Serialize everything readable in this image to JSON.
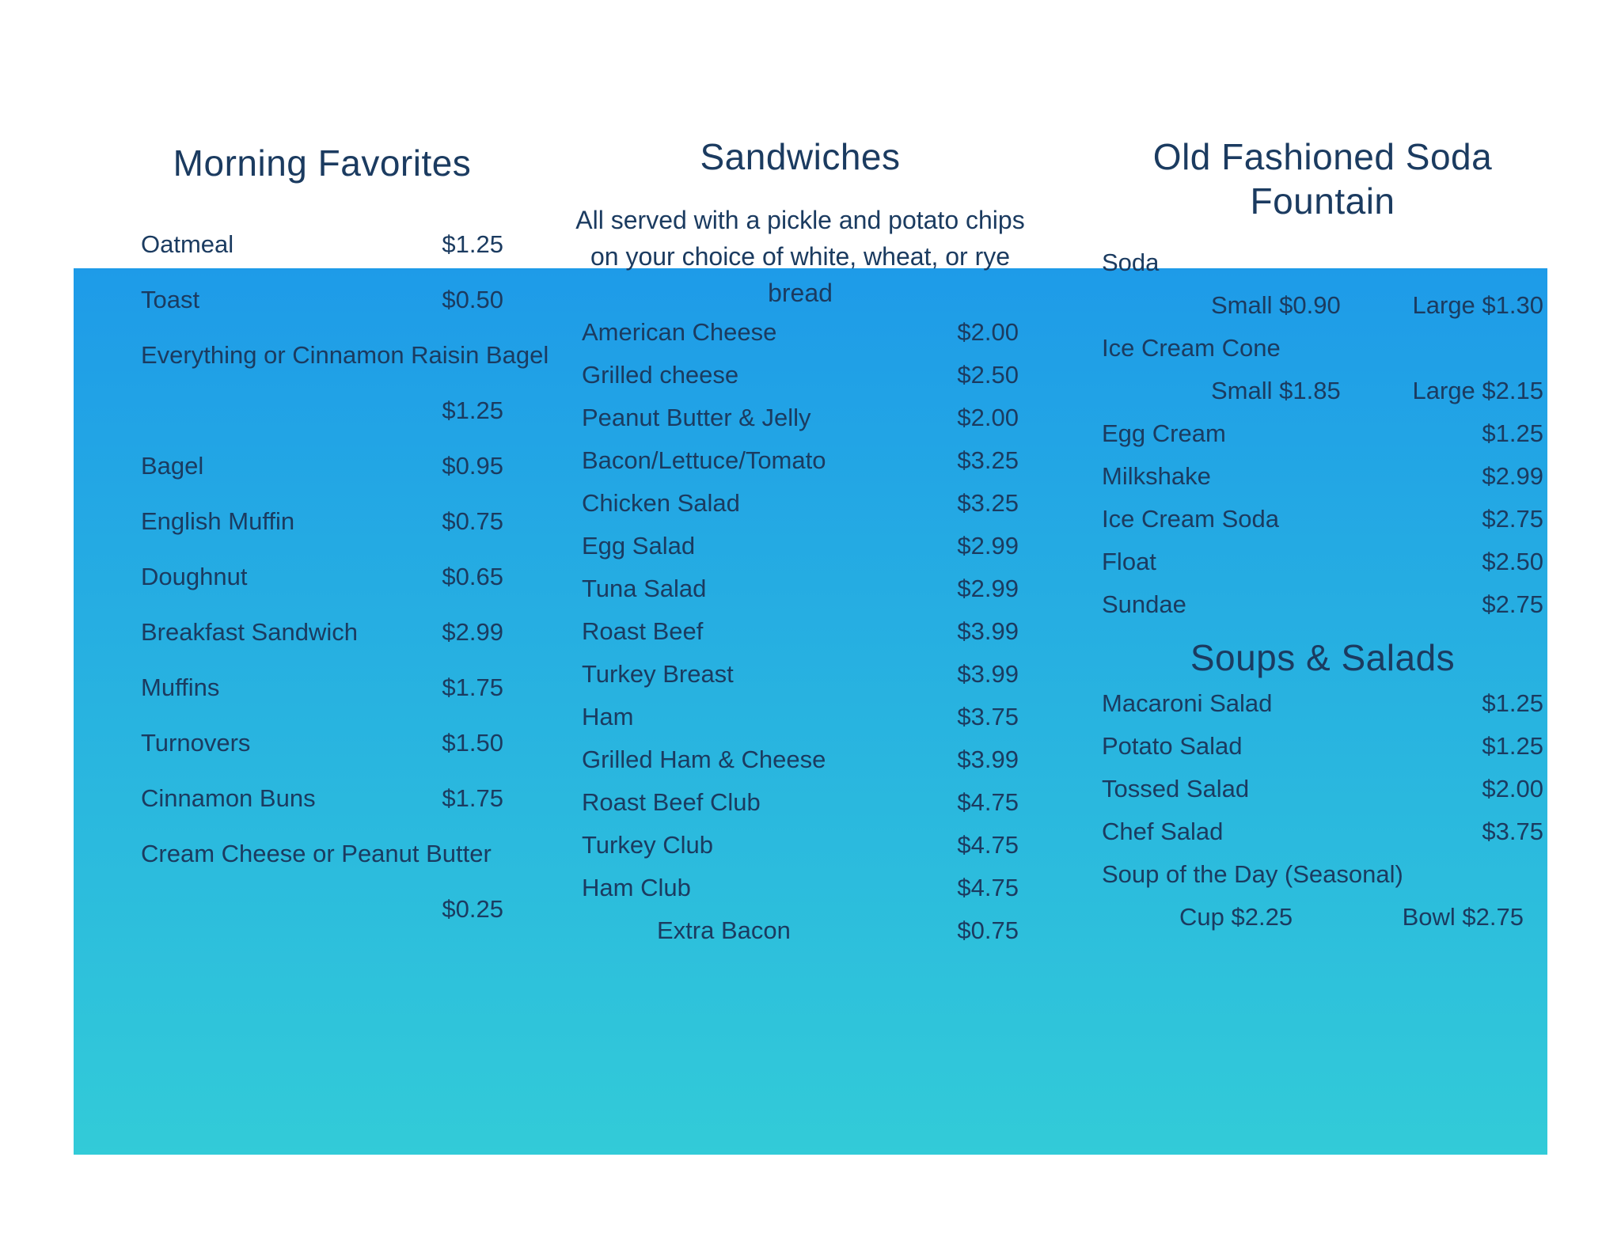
{
  "colors": {
    "text": "#1B3B60",
    "gradient_top": "#1E9BE8",
    "gradient_bottom": "#32CBD8"
  },
  "morning": {
    "title": "Morning Favorites",
    "rows": [
      {
        "name": "Oatmeal",
        "price": "$1.25"
      },
      {
        "name": "Toast",
        "price": "$0.50"
      },
      {
        "name": "Everything or Cinnamon Raisin Bagel"
      },
      {
        "price": "$1.25"
      },
      {
        "name": "Bagel",
        "price": "$0.95"
      },
      {
        "name": "English Muffin",
        "price": "$0.75"
      },
      {
        "name": "Doughnut",
        "price": "$0.65"
      },
      {
        "name": "Breakfast Sandwich",
        "price": "$2.99"
      },
      {
        "name": "Muffins",
        "price": "$1.75"
      },
      {
        "name": "Turnovers",
        "price": "$1.50"
      },
      {
        "name": "Cinnamon Buns",
        "price": "$1.75"
      },
      {
        "name": "Cream Cheese or Peanut Butter"
      },
      {
        "price": "$0.25"
      }
    ]
  },
  "sandwiches": {
    "title": "Sandwiches",
    "subtitle": "All served with a pickle and potato chips on your choice of white, wheat, or rye bread",
    "rows": [
      {
        "name": "American Cheese",
        "price": "$2.00"
      },
      {
        "name": "Grilled cheese",
        "price": "$2.50"
      },
      {
        "name": "Peanut Butter & Jelly",
        "price": "$2.00"
      },
      {
        "name": "Bacon/Lettuce/Tomato",
        "price": "$3.25"
      },
      {
        "name": "Chicken Salad",
        "price": "$3.25"
      },
      {
        "name": "Egg Salad",
        "price": "$2.99"
      },
      {
        "name": "Tuna Salad",
        "price": "$2.99"
      },
      {
        "name": "Roast Beef",
        "price": "$3.99"
      },
      {
        "name": "Turkey Breast",
        "price": "$3.99"
      },
      {
        "name": "Ham",
        "price": "$3.75"
      },
      {
        "name": "Grilled Ham & Cheese",
        "price": "$3.99"
      },
      {
        "name": "Roast Beef Club",
        "price": "$4.75"
      },
      {
        "name": "Turkey Club",
        "price": "$4.75"
      },
      {
        "name": "Ham Club",
        "price": "$4.75"
      }
    ],
    "extra": {
      "name": "Extra Bacon",
      "price": "$0.75"
    }
  },
  "soda_fountain": {
    "title": "Old Fashioned Soda Fountain",
    "soda_label": "Soda",
    "soda_sizes": {
      "small": "Small $0.90",
      "large": "Large $1.30"
    },
    "cone_label": "Ice Cream Cone",
    "cone_sizes": {
      "small": "Small $1.85",
      "large": "Large $2.15"
    },
    "rows": [
      {
        "name": "Egg Cream",
        "price": "$1.25"
      },
      {
        "name": "Milkshake",
        "price": "$2.99"
      },
      {
        "name": "Ice Cream Soda",
        "price": "$2.75"
      },
      {
        "name": "Float",
        "price": "$2.50"
      },
      {
        "name": "Sundae",
        "price": "$2.75"
      }
    ]
  },
  "soups_salads": {
    "title": "Soups & Salads",
    "rows": [
      {
        "name": "Macaroni Salad",
        "price": "$1.25"
      },
      {
        "name": "Potato Salad",
        "price": "$1.25"
      },
      {
        "name": "Tossed Salad",
        "price": "$2.00"
      },
      {
        "name": "Chef Salad",
        "price": "$3.75"
      }
    ],
    "soup_label": "Soup of the Day (Seasonal)",
    "soup_sizes": {
      "cup": "Cup $2.25",
      "bowl": "Bowl $2.75"
    }
  }
}
